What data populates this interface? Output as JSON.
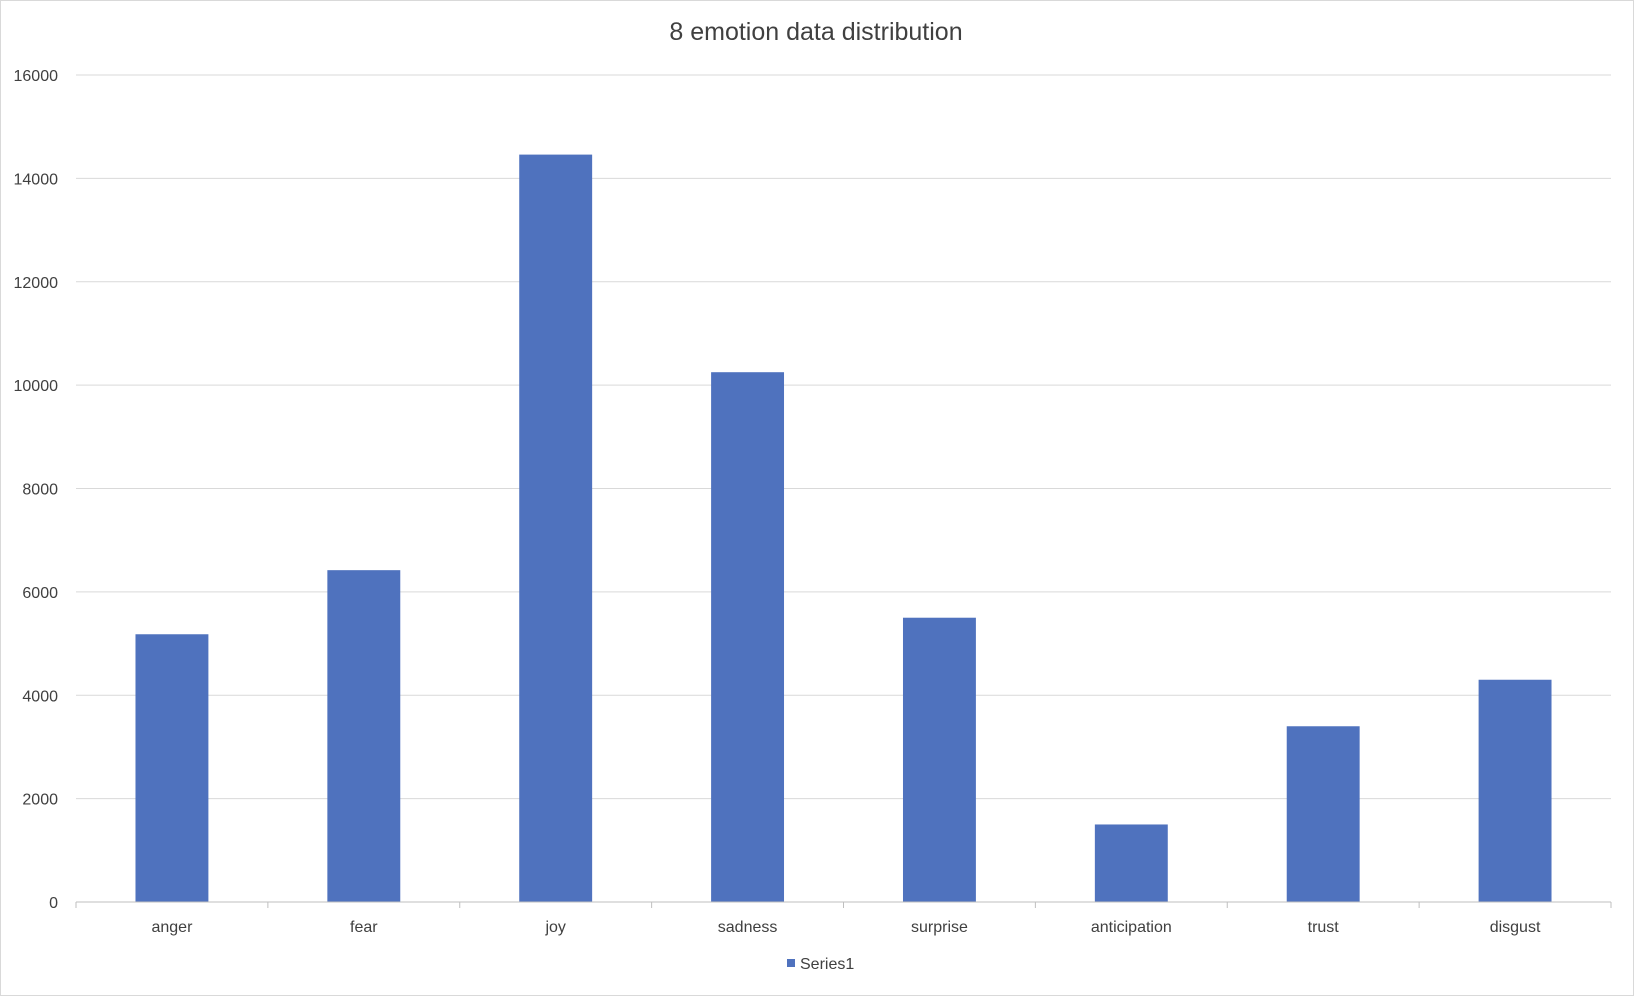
{
  "chart_data": {
    "type": "bar",
    "title": "8 emotion data distribution",
    "categories": [
      "anger",
      "fear",
      "joy",
      "sadness",
      "surprise",
      "anticipation",
      "trust",
      "disgust"
    ],
    "series": [
      {
        "name": "Series1",
        "color": "#4F72BE",
        "values": [
          5180,
          6420,
          14460,
          10250,
          5500,
          1500,
          3400,
          4300
        ]
      }
    ],
    "ylim": [
      0,
      16000
    ],
    "yticks": [
      "0",
      "2000",
      "4000",
      "6000",
      "8000",
      "10000",
      "12000",
      "14000",
      "16000"
    ],
    "grid": true,
    "legend": "bottom-center",
    "colors": {
      "gridline": "#D9D9D9",
      "axis": "#BFBFBF",
      "text": "#404040"
    }
  }
}
